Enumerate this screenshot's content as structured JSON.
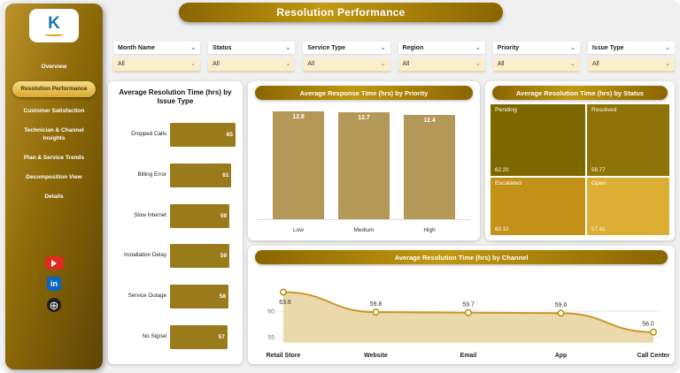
{
  "header": {
    "title": "Resolution Performance"
  },
  "icons": {
    "chevron_down": "⌄",
    "globe": "⊕",
    "linkedin": "in"
  },
  "sidebar": {
    "logo_text": "K",
    "items": [
      {
        "label": "Overview",
        "active": false
      },
      {
        "label": "Resolution Performance",
        "active": true
      },
      {
        "label": "Customer Satisfaction",
        "active": false
      },
      {
        "label": "Technician & Channel Insights",
        "active": false
      },
      {
        "label": "Plan & Service Trends",
        "active": false
      },
      {
        "label": "Decomposition View",
        "active": false
      },
      {
        "label": "Details",
        "active": false
      }
    ]
  },
  "filters": [
    {
      "label": "Month Name",
      "value": "All"
    },
    {
      "label": "Status",
      "value": "All"
    },
    {
      "label": "Service Type",
      "value": "All"
    },
    {
      "label": "Region",
      "value": "All"
    },
    {
      "label": "Priority",
      "value": "All"
    },
    {
      "label": "Issue Type",
      "value": "All"
    }
  ],
  "colors": {
    "accent": "#a87d10",
    "hbar": "#9a7b1c",
    "vbar": "#b49857",
    "line": "#c9992c",
    "area": "#e9d7a6",
    "marker_stroke": "#bf9415"
  },
  "chart_data": [
    {
      "type": "bar",
      "orientation": "horizontal",
      "title": "Average Resolution Time (hrs) by Issue Type",
      "categories": [
        "Dropped Calls",
        "Billing Error",
        "Slow Internet",
        "Installation Delay",
        "Service Outage",
        "No Signal"
      ],
      "values": [
        65,
        61,
        59,
        59,
        58,
        57
      ],
      "xlim": [
        0,
        65
      ]
    },
    {
      "type": "bar",
      "orientation": "vertical",
      "title": "Average Response Time (hrs) by Priority",
      "categories": [
        "Low",
        "Medium",
        "High"
      ],
      "values": [
        12.8,
        12.7,
        12.4
      ],
      "ylim": [
        0,
        13.2
      ]
    },
    {
      "type": "treemap",
      "title": "Average Resolution Time (hrs) by Status",
      "items": [
        {
          "label": "Pending",
          "value": "62.20",
          "color": "#7d6800"
        },
        {
          "label": "Resolved",
          "value": "58.77",
          "color": "#8e7306"
        },
        {
          "label": "Escalated",
          "value": "60.10",
          "color": "#c39117"
        },
        {
          "label": "Open",
          "value": "57.41",
          "color": "#dcae33"
        }
      ]
    },
    {
      "type": "area",
      "title": "Average Resolution Time (hrs) by Channel",
      "categories": [
        "Retail Store",
        "Website",
        "Email",
        "App",
        "Call Center"
      ],
      "values": [
        63.6,
        59.8,
        59.7,
        59.6,
        56.0
      ],
      "value_labels": [
        "63.6",
        "59.8",
        "59.7",
        "59.6",
        "56.0"
      ],
      "yticks": [
        60,
        55
      ],
      "ylim": [
        54,
        66
      ]
    }
  ]
}
